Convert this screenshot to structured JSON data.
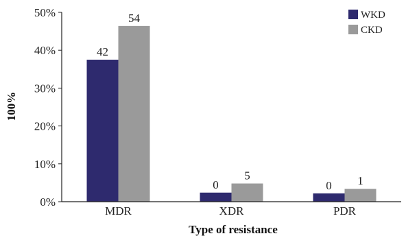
{
  "chart_data": {
    "type": "bar",
    "categories": [
      "MDR",
      "XDR",
      "PDR"
    ],
    "series": [
      {
        "name": "WKD",
        "values": [
          37.5,
          2.4,
          2.2
        ],
        "labels": [
          "42",
          "0",
          "0"
        ],
        "color": "#2e2a6e"
      },
      {
        "name": "CKD",
        "values": [
          46.4,
          4.8,
          3.4
        ],
        "labels": [
          "54",
          "5",
          "1"
        ],
        "color": "#9a9a9a"
      }
    ],
    "ylim": [
      0,
      50
    ],
    "yticks": [
      "0%",
      "10%",
      "20%",
      "30%",
      "40%",
      "50%"
    ],
    "xlabel": "Type of resistance",
    "ylabel": "100%",
    "legend_position": "top-right",
    "grid": false
  }
}
